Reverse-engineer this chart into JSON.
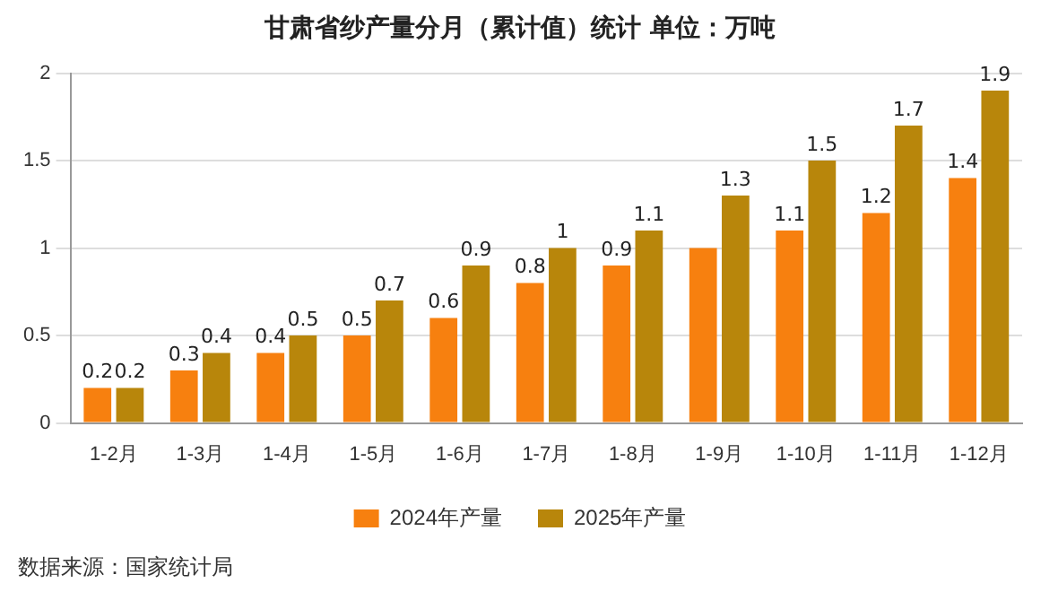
{
  "chart_data": {
    "type": "bar",
    "title": "甘肃省纱产量分月（累计值）统计 单位：万吨",
    "categories": [
      "1-2月",
      "1-3月",
      "1-4月",
      "1-5月",
      "1-6月",
      "1-7月",
      "1-8月",
      "1-9月",
      "1-10月",
      "1-11月",
      "1-12月"
    ],
    "series": [
      {
        "name": "2024年产量",
        "color": "#f7800f",
        "values": [
          0.2,
          0.3,
          0.4,
          0.5,
          0.6,
          0.8,
          0.9,
          1,
          1.1,
          1.2,
          1.4
        ],
        "value_labels": [
          "0.2",
          "0.3",
          "0.4",
          "0.5",
          "0.6",
          "0.8",
          "0.9",
          null,
          "1.1",
          "1.2",
          "1.4"
        ]
      },
      {
        "name": "2025年产量",
        "color": "#b8860b",
        "values": [
          0.2,
          0.4,
          0.5,
          0.7,
          0.9,
          1,
          1.1,
          1.3,
          1.5,
          1.7,
          1.9
        ],
        "value_labels": [
          "0.2",
          "0.4",
          "0.5",
          "0.7",
          "0.9",
          "1",
          "1.1",
          "1.3",
          "1.5",
          "1.7",
          "1.9"
        ]
      }
    ],
    "ylim": [
      0,
      2
    ],
    "yticks": [
      0,
      0.5,
      1,
      1.5,
      2
    ],
    "grid": "y",
    "legend": "bottom",
    "annotations": [
      "数据来源：国家统计局"
    ]
  }
}
